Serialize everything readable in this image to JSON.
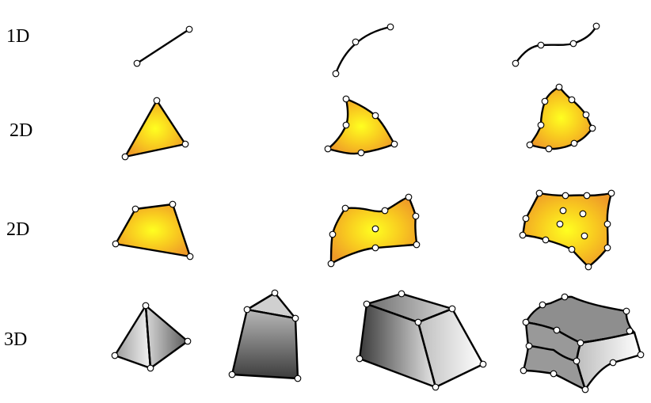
{
  "row_labels": [
    "1D",
    "2D",
    "2D",
    "3D"
  ]
}
